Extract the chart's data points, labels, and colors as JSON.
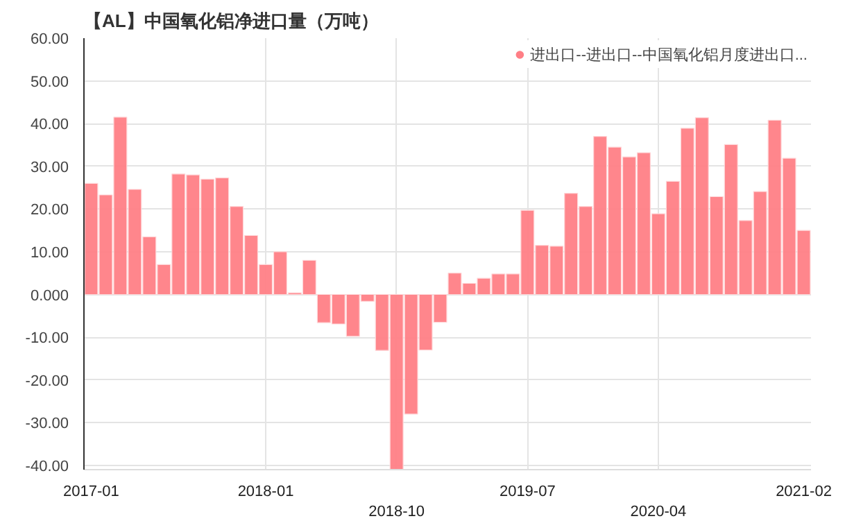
{
  "chart_data": {
    "type": "bar",
    "title": "【AL】中国氧化铝净进口量（万吨）",
    "categories": [
      "2017-01",
      null,
      null,
      null,
      null,
      null,
      null,
      null,
      null,
      null,
      null,
      null,
      "2018-01",
      null,
      null,
      null,
      null,
      null,
      null,
      null,
      null,
      "2018-10",
      null,
      null,
      null,
      null,
      null,
      null,
      null,
      null,
      "2019-07",
      null,
      null,
      null,
      null,
      null,
      null,
      null,
      null,
      "2020-04",
      null,
      null,
      null,
      null,
      null,
      null,
      null,
      null,
      null,
      "2021-02"
    ],
    "series": [
      {
        "name": "进出口--进出口--中国氧化铝月度进出口...",
        "color": "#ff7f86",
        "values": [
          26,
          23.3,
          41.5,
          24.6,
          13.5,
          7,
          28.2,
          28,
          27,
          27.3,
          20.6,
          13.8,
          7,
          10,
          0.4,
          8,
          -6.6,
          -6.9,
          -9.8,
          -1.6,
          -13.1,
          -41,
          -28,
          -13,
          -6.5,
          5,
          2.6,
          3.8,
          4.8,
          4.8,
          19.7,
          11.5,
          11.3,
          23.7,
          20.6,
          37,
          34.5,
          32.2,
          33.2,
          18.9,
          26.5,
          38.9,
          41.4,
          22.9,
          35.1,
          17.3,
          24.1,
          40.8,
          31.9,
          15
        ]
      }
    ],
    "ylim": [
      -41,
      60
    ],
    "yticks": [
      {
        "value": 60,
        "label": "60.00"
      },
      {
        "value": 50,
        "label": "50.00"
      },
      {
        "value": 40,
        "label": "40.00"
      },
      {
        "value": 30,
        "label": "30.00"
      },
      {
        "value": 20,
        "label": "20.00"
      },
      {
        "value": 10,
        "label": "10.00"
      },
      {
        "value": 0,
        "label": "0.000"
      },
      {
        "value": -10,
        "label": "-10.00"
      },
      {
        "value": -20,
        "label": "-20.00"
      },
      {
        "value": -30,
        "label": "-30.00"
      },
      {
        "value": -40,
        "label": "-40.00"
      }
    ],
    "grid": true,
    "legend": "top right"
  }
}
